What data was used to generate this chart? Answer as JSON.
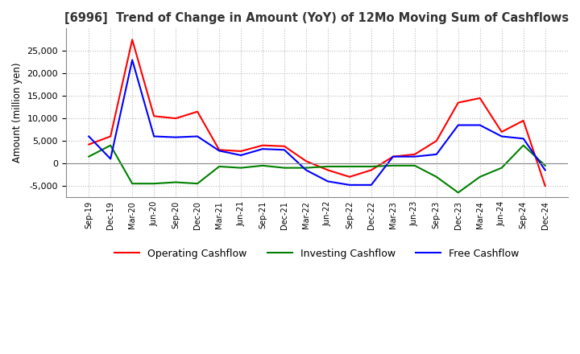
{
  "title": "[6996]  Trend of Change in Amount (YoY) of 12Mo Moving Sum of Cashflows",
  "ylabel": "Amount (million yen)",
  "ylim": [
    -7500,
    30000
  ],
  "yticks": [
    -5000,
    0,
    5000,
    10000,
    15000,
    20000,
    25000
  ],
  "x_labels": [
    "Sep-19",
    "Dec-19",
    "Mar-20",
    "Jun-20",
    "Sep-20",
    "Dec-20",
    "Mar-21",
    "Jun-21",
    "Sep-21",
    "Dec-21",
    "Mar-22",
    "Jun-22",
    "Sep-22",
    "Dec-22",
    "Mar-23",
    "Jun-23",
    "Sep-23",
    "Dec-23",
    "Mar-24",
    "Jun-24",
    "Sep-24",
    "Dec-24"
  ],
  "operating": [
    4200,
    6000,
    27500,
    10500,
    10000,
    11500,
    3000,
    2700,
    4000,
    3800,
    500,
    -1500,
    -3000,
    -1500,
    1500,
    2000,
    5000,
    13500,
    14500,
    7000,
    9500,
    -5000
  ],
  "investing": [
    1500,
    4000,
    -4500,
    -4500,
    -4200,
    -4500,
    -700,
    -1000,
    -500,
    -1000,
    -1000,
    -700,
    -700,
    -700,
    -500,
    -500,
    -3000,
    -6500,
    -3000,
    -1000,
    4000,
    -500
  ],
  "free": [
    6000,
    1000,
    23000,
    6000,
    5800,
    6000,
    2800,
    1800,
    3200,
    3000,
    -1500,
    -4000,
    -4800,
    -4800,
    1500,
    1500,
    2000,
    8500,
    8500,
    6000,
    5500,
    -1500
  ],
  "operating_color": "#ff0000",
  "investing_color": "#008000",
  "free_color": "#0000ff",
  "background_color": "#ffffff",
  "grid_color": "#bbbbbb"
}
